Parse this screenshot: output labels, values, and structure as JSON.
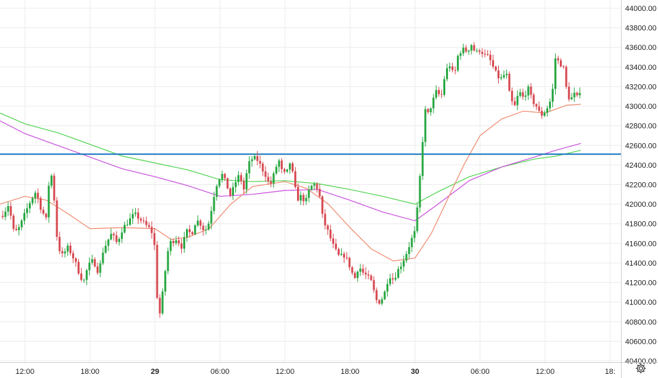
{
  "chart_data": {
    "type": "candlestick",
    "title": "",
    "xlabel": "",
    "ylabel": "",
    "ylim": [
      40400,
      44050
    ],
    "y_ticks": [
      "44000.00",
      "43800.00",
      "43600.00",
      "43400.00",
      "43200.00",
      "43000.00",
      "42800.00",
      "42600.00",
      "42400.00",
      "42200.00",
      "42000.00",
      "41800.00",
      "41600.00",
      "41400.00",
      "41200.00",
      "41000.00",
      "40800.00",
      "40600.00",
      "40400.00"
    ],
    "x_ticks": [
      {
        "label": "12:00",
        "hour": 12,
        "bold": false
      },
      {
        "label": "18:00",
        "hour": 18,
        "bold": false
      },
      {
        "label": "29",
        "hour": 24,
        "bold": true
      },
      {
        "label": "06:00",
        "hour": 30,
        "bold": false
      },
      {
        "label": "12:00",
        "hour": 36,
        "bold": false
      },
      {
        "label": "18:00",
        "hour": 42,
        "bold": false
      },
      {
        "label": "30",
        "hour": 48,
        "bold": true
      },
      {
        "label": "06:00",
        "hour": 54,
        "bold": false
      },
      {
        "label": "12:00",
        "hour": 60,
        "bold": false
      },
      {
        "label": "18:",
        "hour": 66,
        "bold": false
      }
    ],
    "xlim_hours": [
      9.7,
      67.0
    ],
    "candle_interval_minutes": 15,
    "horizontal_line": {
      "value": 42510,
      "color": "#1e78c2"
    },
    "colors": {
      "up": "#26a640",
      "down": "#d6474f",
      "grid": "#ececec"
    },
    "anchors": [
      [
        9.7,
        41880
      ],
      [
        10.0,
        41900
      ],
      [
        10.5,
        42000
      ],
      [
        11.0,
        41700
      ],
      [
        11.5,
        41760
      ],
      [
        12.0,
        41900
      ],
      [
        12.5,
        42030
      ],
      [
        13.0,
        42130
      ],
      [
        13.5,
        41950
      ],
      [
        14.0,
        41830
      ],
      [
        14.3,
        42380
      ],
      [
        14.6,
        42200
      ],
      [
        15.0,
        41600
      ],
      [
        15.4,
        41470
      ],
      [
        16.0,
        41560
      ],
      [
        16.6,
        41420
      ],
      [
        17.0,
        41300
      ],
      [
        17.4,
        41200
      ],
      [
        17.8,
        41360
      ],
      [
        18.3,
        41430
      ],
      [
        18.8,
        41300
      ],
      [
        19.2,
        41520
      ],
      [
        19.6,
        41620
      ],
      [
        20.0,
        41700
      ],
      [
        20.5,
        41600
      ],
      [
        21.0,
        41750
      ],
      [
        21.6,
        41830
      ],
      [
        22.1,
        41900
      ],
      [
        22.6,
        41850
      ],
      [
        23.0,
        41800
      ],
      [
        23.5,
        41750
      ],
      [
        23.9,
        41680
      ],
      [
        24.2,
        41060
      ],
      [
        24.5,
        40850
      ],
      [
        24.8,
        41200
      ],
      [
        25.3,
        41600
      ],
      [
        26.0,
        41650
      ],
      [
        26.5,
        41560
      ],
      [
        26.9,
        41720
      ],
      [
        27.4,
        41700
      ],
      [
        27.8,
        41840
      ],
      [
        28.2,
        41800
      ],
      [
        28.6,
        41720
      ],
      [
        29.0,
        41820
      ],
      [
        29.4,
        42070
      ],
      [
        29.8,
        42250
      ],
      [
        30.2,
        42300
      ],
      [
        30.6,
        42200
      ],
      [
        31.0,
        42080
      ],
      [
        31.4,
        42220
      ],
      [
        31.8,
        42300
      ],
      [
        32.2,
        42150
      ],
      [
        32.6,
        42400
      ],
      [
        33.0,
        42470
      ],
      [
        33.4,
        42460
      ],
      [
        33.8,
        42380
      ],
      [
        34.2,
        42300
      ],
      [
        34.6,
        42180
      ],
      [
        35.0,
        42310
      ],
      [
        35.4,
        42460
      ],
      [
        35.8,
        42300
      ],
      [
        36.2,
        42330
      ],
      [
        36.5,
        42440
      ],
      [
        36.8,
        42250
      ],
      [
        37.1,
        42050
      ],
      [
        37.5,
        42080
      ],
      [
        37.9,
        42020
      ],
      [
        38.3,
        42170
      ],
      [
        38.7,
        42200
      ],
      [
        39.1,
        42150
      ],
      [
        39.5,
        41840
      ],
      [
        40.0,
        41710
      ],
      [
        40.5,
        41560
      ],
      [
        41.0,
        41460
      ],
      [
        41.5,
        41480
      ],
      [
        42.0,
        41360
      ],
      [
        42.4,
        41230
      ],
      [
        42.8,
        41370
      ],
      [
        43.2,
        41300
      ],
      [
        43.6,
        41260
      ],
      [
        44.0,
        41200
      ],
      [
        44.4,
        41020
      ],
      [
        44.8,
        41000
      ],
      [
        45.2,
        41100
      ],
      [
        45.6,
        41280
      ],
      [
        46.0,
        41230
      ],
      [
        46.4,
        41320
      ],
      [
        46.8,
        41400
      ],
      [
        47.2,
        41500
      ],
      [
        47.6,
        41620
      ],
      [
        48.0,
        41720
      ],
      [
        48.3,
        42050
      ],
      [
        48.6,
        42500
      ],
      [
        48.9,
        42960
      ],
      [
        49.2,
        42920
      ],
      [
        49.6,
        43040
      ],
      [
        50.0,
        43160
      ],
      [
        50.4,
        43080
      ],
      [
        50.8,
        43350
      ],
      [
        51.2,
        43420
      ],
      [
        51.6,
        43300
      ],
      [
        52.0,
        43540
      ],
      [
        52.4,
        43580
      ],
      [
        52.8,
        43560
      ],
      [
        53.2,
        43630
      ],
      [
        53.6,
        43540
      ],
      [
        54.0,
        43580
      ],
      [
        54.4,
        43520
      ],
      [
        54.8,
        43500
      ],
      [
        55.2,
        43400
      ],
      [
        55.6,
        43300
      ],
      [
        56.0,
        43280
      ],
      [
        56.4,
        43350
      ],
      [
        56.8,
        43060
      ],
      [
        57.2,
        43000
      ],
      [
        57.6,
        43150
      ],
      [
        58.0,
        43080
      ],
      [
        58.4,
        43190
      ],
      [
        58.8,
        43060
      ],
      [
        59.2,
        43000
      ],
      [
        59.6,
        42900
      ],
      [
        60.0,
        42950
      ],
      [
        60.4,
        43020
      ],
      [
        60.8,
        43220
      ],
      [
        61.0,
        43580
      ],
      [
        61.3,
        43400
      ],
      [
        61.6,
        43460
      ],
      [
        62.0,
        43150
      ],
      [
        62.3,
        43060
      ],
      [
        62.7,
        43120
      ],
      [
        63.0,
        43080
      ],
      [
        63.3,
        43200
      ]
    ],
    "series": [
      {
        "name": "",
        "color": "#52d452",
        "points": [
          [
            9.7,
            42930
          ],
          [
            12.0,
            42820
          ],
          [
            15.0,
            42730
          ],
          [
            18.0,
            42610
          ],
          [
            21.0,
            42490
          ],
          [
            24.0,
            42420
          ],
          [
            27.0,
            42350
          ],
          [
            30.0,
            42250
          ],
          [
            33.0,
            42230
          ],
          [
            36.0,
            42240
          ],
          [
            39.0,
            42210
          ],
          [
            42.0,
            42150
          ],
          [
            45.0,
            42080
          ],
          [
            48.0,
            42000
          ],
          [
            50.0,
            42120
          ],
          [
            53.0,
            42280
          ],
          [
            56.0,
            42380
          ],
          [
            59.0,
            42460
          ],
          [
            61.0,
            42490
          ],
          [
            63.3,
            42550
          ]
        ]
      },
      {
        "name": "",
        "color": "#c84fdc",
        "points": [
          [
            9.7,
            42850
          ],
          [
            12.0,
            42720
          ],
          [
            15.0,
            42600
          ],
          [
            18.0,
            42480
          ],
          [
            21.0,
            42360
          ],
          [
            24.0,
            42280
          ],
          [
            27.0,
            42190
          ],
          [
            30.0,
            42080
          ],
          [
            33.0,
            42100
          ],
          [
            36.0,
            42140
          ],
          [
            39.0,
            42150
          ],
          [
            42.0,
            42040
          ],
          [
            45.0,
            41920
          ],
          [
            48.0,
            41830
          ],
          [
            50.0,
            41990
          ],
          [
            53.0,
            42240
          ],
          [
            56.0,
            42380
          ],
          [
            59.0,
            42480
          ],
          [
            61.0,
            42550
          ],
          [
            63.3,
            42620
          ]
        ]
      },
      {
        "name": "",
        "color": "#f08a6e",
        "points": [
          [
            9.7,
            42000
          ],
          [
            12.0,
            42080
          ],
          [
            14.0,
            42040
          ],
          [
            16.0,
            41900
          ],
          [
            18.0,
            41750
          ],
          [
            21.0,
            41760
          ],
          [
            24.0,
            41750
          ],
          [
            25.5,
            41640
          ],
          [
            27.0,
            41660
          ],
          [
            29.0,
            41750
          ],
          [
            31.0,
            42000
          ],
          [
            33.0,
            42180
          ],
          [
            36.0,
            42230
          ],
          [
            38.0,
            42160
          ],
          [
            40.0,
            42000
          ],
          [
            42.0,
            41760
          ],
          [
            44.0,
            41540
          ],
          [
            46.0,
            41420
          ],
          [
            48.0,
            41450
          ],
          [
            49.5,
            41700
          ],
          [
            51.0,
            42050
          ],
          [
            52.5,
            42400
          ],
          [
            54.0,
            42700
          ],
          [
            56.0,
            42870
          ],
          [
            58.0,
            42950
          ],
          [
            60.0,
            42930
          ],
          [
            62.0,
            43010
          ],
          [
            63.3,
            43020
          ]
        ]
      }
    ],
    "settings_icon": "gear-icon"
  }
}
